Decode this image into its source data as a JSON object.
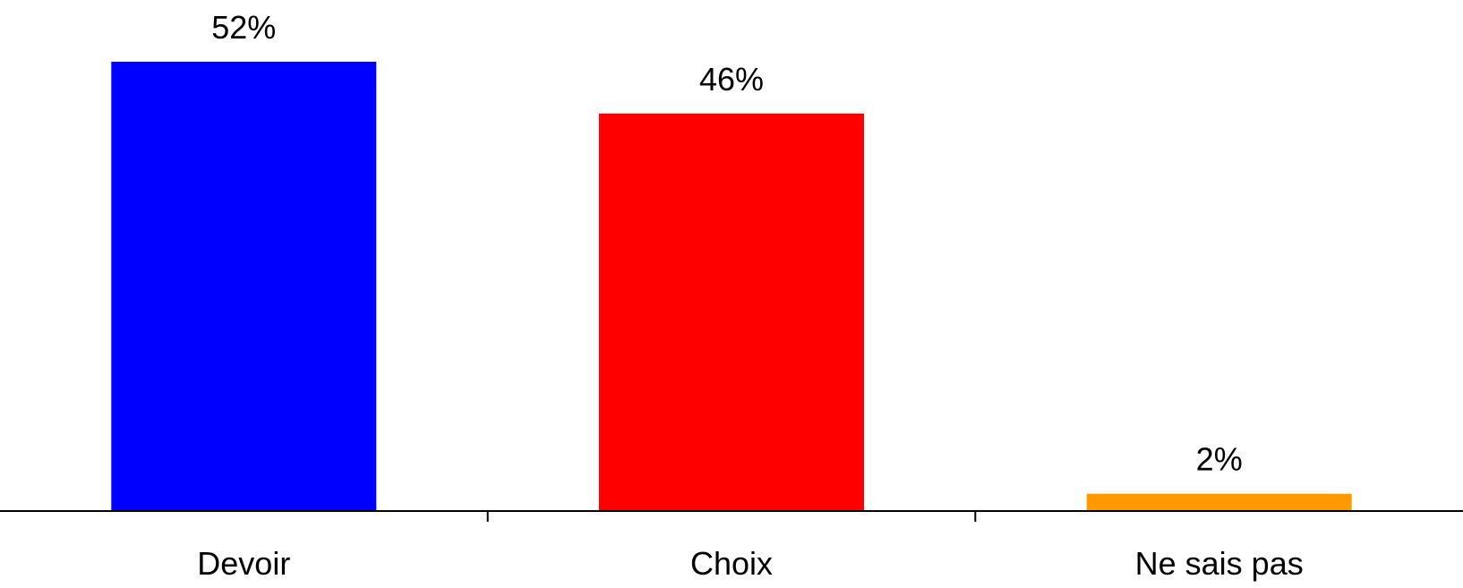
{
  "chart_data": {
    "type": "bar",
    "categories": [
      "Devoir",
      "Choix",
      "Ne sais pas"
    ],
    "values": [
      52,
      46,
      2
    ],
    "data_labels": [
      "52%",
      "46%",
      "2%"
    ],
    "unit": "%",
    "colors": [
      "#0000ff",
      "#ff0000",
      "#ff9900"
    ],
    "axis_color": "#000000",
    "title": "",
    "xlabel": "",
    "ylabel": "",
    "ylim": [
      0,
      52
    ],
    "grid": false,
    "legend": "none"
  }
}
